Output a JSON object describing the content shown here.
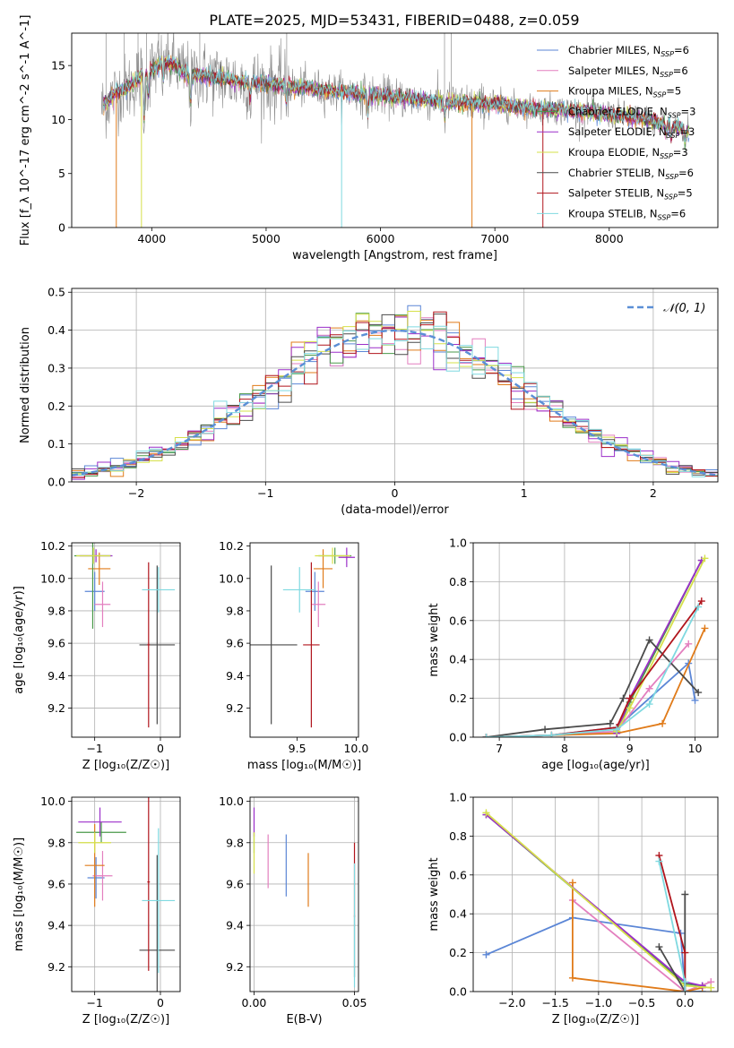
{
  "figure_title": "PLATE=2025, MJD=53431, FIBERID=0488, z=0.059",
  "colors": {
    "Chabrier MILES": "#5b86d6",
    "Salpeter MILES": "#e37fbf",
    "Kroupa MILES": "#e07b1a",
    "Chabrier ELODIE": "#4a9a4a",
    "Salpeter ELODIE": "#9b2fc9",
    "Kroupa ELODIE": "#d6e04a",
    "Chabrier STELIB": "#4a4a4a",
    "Salpeter STELIB": "#b0141c",
    "Kroupa STELIB": "#7fd9e0",
    "observed": "#8c8c8c",
    "normal": "#5b8fd6"
  },
  "chart_data": [
    {
      "id": "spectrum",
      "type": "line",
      "xlabel": "wavelength [Angstrom, rest frame]",
      "ylabel": "Flux [f_λ 10^-17 erg cm^-2 s^-1 A^-1]",
      "xlim": [
        3300,
        8950
      ],
      "ylim": [
        0,
        18
      ],
      "xticks": [
        4000,
        5000,
        6000,
        7000,
        8000
      ],
      "yticks": [
        0,
        5,
        10,
        15
      ],
      "grid": false,
      "legend_position": "top-right",
      "legend": [
        {
          "label": "Chabrier MILES, N",
          "sub": "SSP",
          "suffix": "=6",
          "color_key": "Chabrier MILES"
        },
        {
          "label": "Salpeter MILES, N",
          "sub": "SSP",
          "suffix": "=6",
          "color_key": "Salpeter MILES"
        },
        {
          "label": "Kroupa MILES, N",
          "sub": "SSP",
          "suffix": "=5",
          "color_key": "Kroupa MILES"
        },
        {
          "label": "Chabrier ELODIE, N",
          "sub": "SSP",
          "suffix": "=3",
          "color_key": "Chabrier ELODIE"
        },
        {
          "label": "Salpeter ELODIE, N",
          "sub": "SSP",
          "suffix": "=3",
          "color_key": "Salpeter ELODIE"
        },
        {
          "label": "Kroupa ELODIE, N",
          "sub": "SSP",
          "suffix": "=3",
          "color_key": "Kroupa ELODIE"
        },
        {
          "label": "Chabrier STELIB, N",
          "sub": "SSP",
          "suffix": "=6",
          "color_key": "Chabrier STELIB"
        },
        {
          "label": "Salpeter STELIB, N",
          "sub": "SSP",
          "suffix": "=5",
          "color_key": "Salpeter STELIB"
        },
        {
          "label": "Kroupa STELIB, N",
          "sub": "SSP",
          "suffix": "=6",
          "color_key": "Kroupa STELIB"
        }
      ],
      "continuum": {
        "x": [
          3560,
          3620,
          3700,
          3800,
          3900,
          4000,
          4100,
          4200,
          4300,
          4500,
          4700,
          5000,
          5300,
          5600,
          6000,
          6300,
          6600,
          7000,
          7300,
          7600,
          7900,
          8200,
          8500,
          8700
        ],
        "y": [
          11.0,
          11.8,
          12.6,
          13.0,
          14.0,
          14.6,
          15.3,
          15.0,
          14.2,
          14.0,
          13.6,
          13.3,
          13.0,
          12.6,
          12.2,
          11.9,
          11.6,
          11.4,
          11.1,
          10.9,
          10.6,
          10.2,
          9.6,
          9.0
        ]
      },
      "absorption_spikes": [
        {
          "x": 3934,
          "depth": 4.5
        },
        {
          "x": 3969,
          "depth": 2.5
        },
        {
          "x": 4101,
          "depth": 2.0
        },
        {
          "x": 4340,
          "depth": 3.0
        },
        {
          "x": 4861,
          "depth": 1.8
        },
        {
          "x": 5175,
          "depth": 1.5
        },
        {
          "x": 5890,
          "depth": 2.0
        },
        {
          "x": 6563,
          "depth": 1.6
        },
        {
          "x": 8498,
          "depth": 1.2
        },
        {
          "x": 8542,
          "depth": 1.4
        },
        {
          "x": 8662,
          "depth": 1.3
        }
      ],
      "gap_drops": [
        {
          "x": 3690,
          "color_key": "Kroupa MILES"
        },
        {
          "x": 3910,
          "color_key": "Kroupa ELODIE"
        },
        {
          "x": 5660,
          "color_key": "Kroupa STELIB"
        },
        {
          "x": 6800,
          "color_key": "Kroupa MILES"
        },
        {
          "x": 7420,
          "color_key": "Salpeter STELIB"
        }
      ]
    },
    {
      "id": "residuals",
      "type": "step",
      "xlabel": "(data-model)/error",
      "ylabel": "Normed distribution",
      "xlim": [
        -2.5,
        2.5
      ],
      "ylim": [
        0,
        0.51
      ],
      "xticks": [
        -2,
        -1,
        0,
        1,
        2
      ],
      "yticks": [
        0.0,
        0.1,
        0.2,
        0.3,
        0.4,
        0.5
      ],
      "grid": true,
      "legend_position": "top-right",
      "legend": [
        {
          "label": "𝒩(0, 1)",
          "color_key": "normal"
        }
      ],
      "bin_width": 0.1,
      "normal_curve": {
        "mean": 0,
        "sigma": 1
      }
    },
    {
      "id": "age_vs_Z",
      "type": "errorbar",
      "xlabel": "Z [log₁₀(Z/Z☉)]",
      "ylabel": "age  [log₁₀(age/yr)]",
      "xlim": [
        -1.35,
        0.3
      ],
      "ylim": [
        9.02,
        10.22
      ],
      "xticks": [
        -1,
        0
      ],
      "yticks": [
        9.2,
        9.4,
        9.6,
        9.8,
        10.0,
        10.2
      ],
      "grid": true,
      "points": [
        {
          "key": "Chabrier MILES",
          "x": -1.0,
          "xerr": 0.15,
          "y": 9.92,
          "yerr": 0.12
        },
        {
          "key": "Salpeter MILES",
          "x": -0.88,
          "xerr": 0.12,
          "y": 9.84,
          "yerr": 0.14
        },
        {
          "key": "Kroupa MILES",
          "x": -0.93,
          "xerr": 0.17,
          "y": 10.06,
          "yerr": 0.1
        },
        {
          "key": "Chabrier ELODIE",
          "x": -1.03,
          "xerr": 0.28,
          "y": 10.14,
          "yerr": 0.45
        },
        {
          "key": "Salpeter ELODIE",
          "x": -0.98,
          "xerr": 0.25,
          "y": 10.14,
          "yerr": 0.04
        },
        {
          "key": "Kroupa ELODIE",
          "x": -1.02,
          "xerr": 0.26,
          "y": 10.14,
          "yerr": 0.05
        },
        {
          "key": "Chabrier STELIB",
          "x": -0.05,
          "xerr": 0.27,
          "y": 9.59,
          "yerr": 0.49
        },
        {
          "key": "Salpeter STELIB",
          "x": -0.18,
          "xerr": 0.02,
          "y": 9.59,
          "yerr": 0.51
        },
        {
          "key": "Kroupa STELIB",
          "x": -0.03,
          "xerr": 0.25,
          "y": 9.93,
          "yerr": 0.14
        }
      ]
    },
    {
      "id": "age_vs_mass",
      "type": "errorbar",
      "xlabel": "mass [log₁₀(M/M☉)]",
      "ylabel": "",
      "xlim": [
        9.1,
        10.02
      ],
      "ylim": [
        9.02,
        10.22
      ],
      "xticks": [
        9.5,
        10.0
      ],
      "yticks": [
        9.2,
        9.4,
        9.6,
        9.8,
        10.0,
        10.2
      ],
      "grid": false,
      "points": [
        {
          "key": "Chabrier MILES",
          "x": 9.65,
          "xerr": 0.08,
          "y": 9.92,
          "yerr": 0.12
        },
        {
          "key": "Salpeter MILES",
          "x": 9.68,
          "xerr": 0.06,
          "y": 9.84,
          "yerr": 0.14
        },
        {
          "key": "Kroupa MILES",
          "x": 9.72,
          "xerr": 0.08,
          "y": 10.06,
          "yerr": 0.12
        },
        {
          "key": "Chabrier ELODIE",
          "x": 9.82,
          "xerr": 0.14,
          "y": 10.14,
          "yerr": 0.05
        },
        {
          "key": "Salpeter ELODIE",
          "x": 9.92,
          "xerr": 0.07,
          "y": 10.13,
          "yerr": 0.06
        },
        {
          "key": "Kroupa ELODIE",
          "x": 9.8,
          "xerr": 0.15,
          "y": 10.14,
          "yerr": 0.05
        },
        {
          "key": "Chabrier STELIB",
          "x": 9.28,
          "xerr": 0.22,
          "y": 9.59,
          "yerr": 0.49
        },
        {
          "key": "Salpeter STELIB",
          "x": 9.62,
          "xerr": 0.07,
          "y": 9.59,
          "yerr": 0.51
        },
        {
          "key": "Kroupa STELIB",
          "x": 9.52,
          "xerr": 0.14,
          "y": 9.93,
          "yerr": 0.14
        }
      ]
    },
    {
      "id": "mass_weight_vs_age",
      "type": "line",
      "xlabel": "age  [log₁₀(age/yr)]",
      "ylabel": "mass weight",
      "xlim": [
        6.6,
        10.35
      ],
      "ylim": [
        0,
        1.0
      ],
      "xticks": [
        7,
        8,
        9,
        10
      ],
      "yticks": [
        0.0,
        0.2,
        0.4,
        0.6,
        0.8,
        1.0
      ],
      "grid": true,
      "series": [
        {
          "key": "Chabrier MILES",
          "x": [
            6.8,
            7.8,
            8.8,
            9.9,
            10.0
          ],
          "y": [
            0.0,
            0.01,
            0.05,
            0.38,
            0.19
          ]
        },
        {
          "key": "Salpeter MILES",
          "x": [
            6.8,
            7.8,
            8.8,
            9.3,
            9.9
          ],
          "y": [
            0.0,
            0.01,
            0.03,
            0.25,
            0.48
          ]
        },
        {
          "key": "Kroupa MILES",
          "x": [
            6.8,
            7.8,
            8.8,
            9.5,
            10.15
          ],
          "y": [
            0.0,
            0.01,
            0.02,
            0.07,
            0.56
          ]
        },
        {
          "key": "Chabrier ELODIE",
          "x": [
            8.8,
            9.0,
            10.1
          ],
          "y": [
            0.03,
            0.18,
            0.91
          ]
        },
        {
          "key": "Salpeter ELODIE",
          "x": [
            8.8,
            9.0,
            10.1
          ],
          "y": [
            0.02,
            0.2,
            0.91
          ]
        },
        {
          "key": "Kroupa ELODIE",
          "x": [
            8.8,
            9.0,
            10.15
          ],
          "y": [
            0.03,
            0.15,
            0.92
          ]
        },
        {
          "key": "Chabrier STELIB",
          "x": [
            6.8,
            7.7,
            8.7,
            8.9,
            9.3,
            10.05
          ],
          "y": [
            0.0,
            0.04,
            0.07,
            0.2,
            0.5,
            0.23
          ]
        },
        {
          "key": "Salpeter STELIB",
          "x": [
            6.8,
            7.8,
            8.8,
            9.0,
            10.1
          ],
          "y": [
            0.0,
            0.01,
            0.05,
            0.2,
            0.7
          ]
        },
        {
          "key": "Kroupa STELIB",
          "x": [
            6.8,
            7.8,
            8.8,
            9.3,
            10.05
          ],
          "y": [
            0.0,
            0.01,
            0.04,
            0.17,
            0.67
          ]
        }
      ]
    },
    {
      "id": "mass_vs_Z",
      "type": "errorbar",
      "xlabel": "Z [log₁₀(Z/Z☉)]",
      "ylabel": "mass [log₁₀(M/M☉)]",
      "xlim": [
        -1.35,
        0.3
      ],
      "ylim": [
        9.08,
        10.02
      ],
      "xticks": [
        -1,
        0
      ],
      "yticks": [
        9.2,
        9.4,
        9.6,
        9.8,
        10.0
      ],
      "grid": true,
      "points": [
        {
          "key": "Chabrier MILES",
          "x": -0.98,
          "xerr": 0.13,
          "y": 9.63,
          "yerr": 0.1
        },
        {
          "key": "Salpeter MILES",
          "x": -0.88,
          "xerr": 0.15,
          "y": 9.64,
          "yerr": 0.12
        },
        {
          "key": "Kroupa MILES",
          "x": -1.0,
          "xerr": 0.15,
          "y": 9.69,
          "yerr": 0.2
        },
        {
          "key": "Chabrier ELODIE",
          "x": -0.9,
          "xerr": 0.38,
          "y": 9.85,
          "yerr": 0.05
        },
        {
          "key": "Salpeter ELODIE",
          "x": -0.92,
          "xerr": 0.33,
          "y": 9.9,
          "yerr": 0.07
        },
        {
          "key": "Kroupa ELODIE",
          "x": -1.0,
          "xerr": 0.25,
          "y": 9.8,
          "yerr": 0.05
        },
        {
          "key": "Chabrier STELIB",
          "x": -0.05,
          "xerr": 0.27,
          "y": 9.28,
          "yerr": 0.46
        },
        {
          "key": "Salpeter STELIB",
          "x": -0.18,
          "xerr": 0.02,
          "y": 9.61,
          "yerr": 0.43
        },
        {
          "key": "Kroupa STELIB",
          "x": -0.03,
          "xerr": 0.25,
          "y": 9.52,
          "yerr": 0.35
        }
      ]
    },
    {
      "id": "mass_vs_ebv",
      "type": "errorbar",
      "xlabel": "E(B-V)",
      "ylabel": "",
      "xlim": [
        -0.002,
        0.052
      ],
      "ylim": [
        9.08,
        10.02
      ],
      "xticks": [
        0.0,
        0.05
      ],
      "yticks": [
        9.2,
        9.4,
        9.6,
        9.8,
        10.0
      ],
      "grid": true,
      "points": [
        {
          "key": "Chabrier MILES",
          "x": 0.016,
          "xerr": 0,
          "y": 9.69,
          "yerr": 0.15
        },
        {
          "key": "Salpeter MILES",
          "x": 0.007,
          "xerr": 0,
          "y": 9.71,
          "yerr": 0.13
        },
        {
          "key": "Kroupa MILES",
          "x": 0.027,
          "xerr": 0,
          "y": 9.62,
          "yerr": 0.13
        },
        {
          "key": "Chabrier ELODIE",
          "x": 0.0,
          "xerr": 0,
          "y": 9.8,
          "yerr": 0.05
        },
        {
          "key": "Salpeter ELODIE",
          "x": 0.0,
          "xerr": 0,
          "y": 9.9,
          "yerr": 0.07
        },
        {
          "key": "Kroupa ELODIE",
          "x": 0.0,
          "xerr": 0,
          "y": 9.75,
          "yerr": 0.1
        },
        {
          "key": "Chabrier STELIB",
          "x": 0.05,
          "xerr": 0,
          "y": 9.3,
          "yerr": 0.15
        },
        {
          "key": "Salpeter STELIB",
          "x": 0.05,
          "xerr": 0,
          "y": 9.62,
          "yerr": 0.18
        },
        {
          "key": "Kroupa STELIB",
          "x": 0.05,
          "xerr": 0,
          "y": 9.4,
          "yerr": 0.3
        }
      ]
    },
    {
      "id": "mass_weight_vs_Z",
      "type": "line",
      "xlabel": "Z [log₁₀(Z/Z☉)]",
      "ylabel": "mass weight",
      "xlim": [
        -2.45,
        0.38
      ],
      "ylim": [
        0,
        1.0
      ],
      "xticks": [
        -2.0,
        -1.5,
        -1.0,
        -0.5,
        0.0
      ],
      "yticks": [
        0.0,
        0.2,
        0.4,
        0.6,
        0.8,
        1.0
      ],
      "grid": true,
      "series": [
        {
          "key": "Chabrier MILES",
          "x": [
            -2.3,
            -1.3,
            -0.05,
            0.0,
            0.2
          ],
          "y": [
            0.19,
            0.38,
            0.3,
            0.0,
            0.0
          ]
        },
        {
          "key": "Salpeter MILES",
          "x": [
            -1.3,
            0.0,
            0.3
          ],
          "y": [
            0.47,
            0.0,
            0.05
          ]
        },
        {
          "key": "Kroupa MILES",
          "x": [
            -1.3,
            -1.3,
            0.0,
            0.2
          ],
          "y": [
            0.56,
            0.07,
            0.0,
            0.02
          ]
        },
        {
          "key": "Chabrier ELODIE",
          "x": [
            -2.3,
            0.0,
            0.2
          ],
          "y": [
            0.91,
            0.04,
            0.03
          ]
        },
        {
          "key": "Salpeter ELODIE",
          "x": [
            -2.3,
            0.0,
            0.2
          ],
          "y": [
            0.91,
            0.05,
            0.03
          ]
        },
        {
          "key": "Kroupa ELODIE",
          "x": [
            -2.3,
            0.0,
            0.3
          ],
          "y": [
            0.92,
            0.03,
            0.02
          ]
        },
        {
          "key": "Chabrier STELIB",
          "x": [
            -0.3,
            0.0,
            0.0
          ],
          "y": [
            0.23,
            0.0,
            0.5
          ]
        },
        {
          "key": "Salpeter STELIB",
          "x": [
            -0.3,
            0.0,
            0.0
          ],
          "y": [
            0.7,
            0.2,
            0.0
          ]
        },
        {
          "key": "Kroupa STELIB",
          "x": [
            -0.3,
            0.0,
            0.0
          ],
          "y": [
            0.67,
            0.05,
            0.0
          ]
        }
      ]
    }
  ]
}
